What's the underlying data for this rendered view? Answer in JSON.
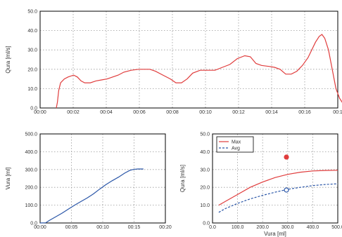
{
  "chart_data": [
    {
      "id": "flow-time",
      "type": "line",
      "title": "",
      "xlabel": "",
      "ylabel": "Qura [ml/s]",
      "xlim": [
        0,
        16
      ],
      "ylim": [
        0,
        50
      ],
      "x_ticks": [
        "00:00",
        "00:02",
        "00:04",
        "00:06",
        "00:08",
        "00:10",
        "00:12",
        "00:14",
        "00:16",
        "00:1"
      ],
      "y_ticks": [
        "0.0",
        "10.0",
        "20.0",
        "30.0",
        "40.0",
        "50.0"
      ],
      "grid": true,
      "series": [
        {
          "color": "#e03c3c",
          "style": "solid",
          "x": [
            0.87,
            0.93,
            1.0,
            1.1,
            1.3,
            1.5,
            1.8,
            2.0,
            2.2,
            2.4,
            2.7,
            3.0,
            3.3,
            3.6,
            3.9,
            4.2,
            4.5,
            4.9,
            5.3,
            5.6,
            5.9,
            6.2,
            6.6,
            7.0,
            7.3,
            7.6,
            7.9,
            8.2,
            8.6,
            9.0,
            9.4,
            9.8,
            10.2,
            10.6,
            11.0,
            11.3,
            11.6,
            11.9,
            12.3,
            12.6,
            12.9,
            13.2,
            13.5,
            13.8,
            14.1,
            14.4,
            14.6,
            14.8,
            15.0,
            15.15,
            15.3,
            15.5,
            15.7,
            15.9,
            16.1,
            16.3,
            16.47,
            16.54
          ],
          "y": [
            0,
            3,
            9,
            13,
            15,
            16,
            17,
            16,
            14,
            13,
            13,
            14,
            14.5,
            15,
            16,
            17,
            18.5,
            19.5,
            20,
            20,
            20,
            19,
            17,
            15,
            13,
            13,
            15,
            18,
            19.5,
            19.5,
            19.5,
            21,
            22.5,
            25.5,
            27,
            26.5,
            23,
            22,
            21.5,
            21,
            20,
            17.5,
            17.5,
            19,
            22,
            26,
            30,
            34,
            37,
            38,
            36,
            30,
            20,
            10,
            5,
            2,
            0,
            0
          ]
        }
      ]
    },
    {
      "id": "volume-time",
      "type": "line",
      "title": "",
      "xlabel": "",
      "ylabel": "Vura [ml]",
      "xlim": [
        0,
        20
      ],
      "ylim": [
        0,
        500
      ],
      "x_ticks": [
        "00:00",
        "00:05",
        "00:10",
        "00:15",
        "00:20"
      ],
      "y_ticks": [
        "0.0",
        "100.0",
        "200.0",
        "300.0",
        "400.0",
        "500.0"
      ],
      "grid": true,
      "series": [
        {
          "color": "#2a56a8",
          "style": "solid",
          "x": [
            0.0,
            0.9,
            1.5,
            2.5,
            3.5,
            4.5,
            5.5,
            6.5,
            7.5,
            8.5,
            9.5,
            10.5,
            11.5,
            12.5,
            13.5,
            14.3,
            14.8,
            15.2,
            15.6,
            16.0,
            16.5
          ],
          "y": [
            0,
            1,
            15,
            35,
            55,
            78,
            100,
            120,
            140,
            163,
            190,
            215,
            237,
            257,
            280,
            295,
            300,
            302,
            303,
            303,
            303
          ]
        }
      ]
    },
    {
      "id": "flow-volume",
      "type": "line",
      "title": "",
      "xlabel": "Vura [ml]",
      "ylabel": "Qura [ml/s]",
      "xlim": [
        0,
        500
      ],
      "ylim": [
        0,
        50
      ],
      "x_ticks": [
        "0.0",
        "100.0",
        "200.0",
        "300.0",
        "400.0",
        "500.0"
      ],
      "y_ticks": [
        "0.0",
        "10.0",
        "20.0",
        "30.0",
        "40.0",
        "50.0"
      ],
      "grid": true,
      "legend": "top-left",
      "series": [
        {
          "name": "Max",
          "color": "#e03c3c",
          "style": "solid",
          "x": [
            25,
            50,
            100,
            150,
            200,
            250,
            300,
            350,
            400,
            450,
            500
          ],
          "y": [
            10,
            12,
            16,
            20,
            23,
            25.5,
            27.3,
            28.5,
            29.2,
            29.5,
            29.6
          ]
        },
        {
          "name": "Avg",
          "color": "#2a56a8",
          "style": "dashed",
          "x": [
            25,
            50,
            100,
            150,
            200,
            250,
            300,
            350,
            400,
            450,
            500
          ],
          "y": [
            6,
            8,
            11,
            13.5,
            15.5,
            17.3,
            18.9,
            20,
            21,
            21.6,
            22
          ]
        }
      ],
      "points": [
        {
          "x": 295,
          "y": 37,
          "color": "#e03c3c",
          "filled": true
        },
        {
          "x": 295,
          "y": 18.5,
          "color": "#2a56a8",
          "filled": false
        }
      ]
    }
  ]
}
